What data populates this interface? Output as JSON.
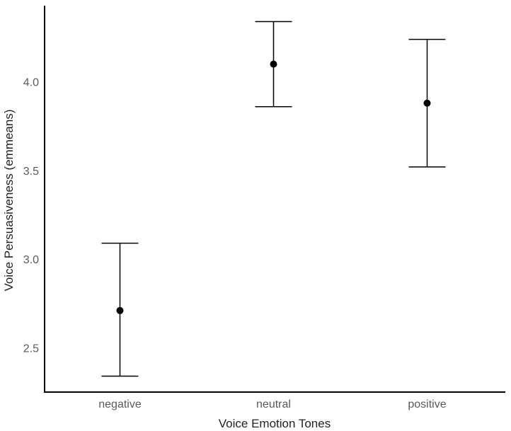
{
  "chart_data": {
    "type": "scatter",
    "subtype": "point-with-error-bars",
    "title": "",
    "xlabel": "Voice Emotion Tones",
    "ylabel": "Voice Persuasiveness (emmeans)",
    "categories": [
      "negative",
      "neutral",
      "positive"
    ],
    "series": [
      {
        "values": [
          2.71,
          4.1,
          3.88
        ],
        "lower": [
          2.34,
          3.86,
          3.52
        ],
        "upper": [
          3.09,
          4.34,
          4.24
        ]
      }
    ],
    "ylim": [
      2.25,
      4.43
    ],
    "yticks": [
      2.5,
      3.0,
      3.5,
      4.0
    ],
    "ytick_labels": [
      "2.5",
      "3.0",
      "3.5",
      "4.0"
    ],
    "grid": false,
    "legend": "none",
    "colors": {
      "point": "#000000",
      "error_bar": "#000000",
      "axis": "#000000",
      "tick_text": "#5a5a5a"
    }
  }
}
